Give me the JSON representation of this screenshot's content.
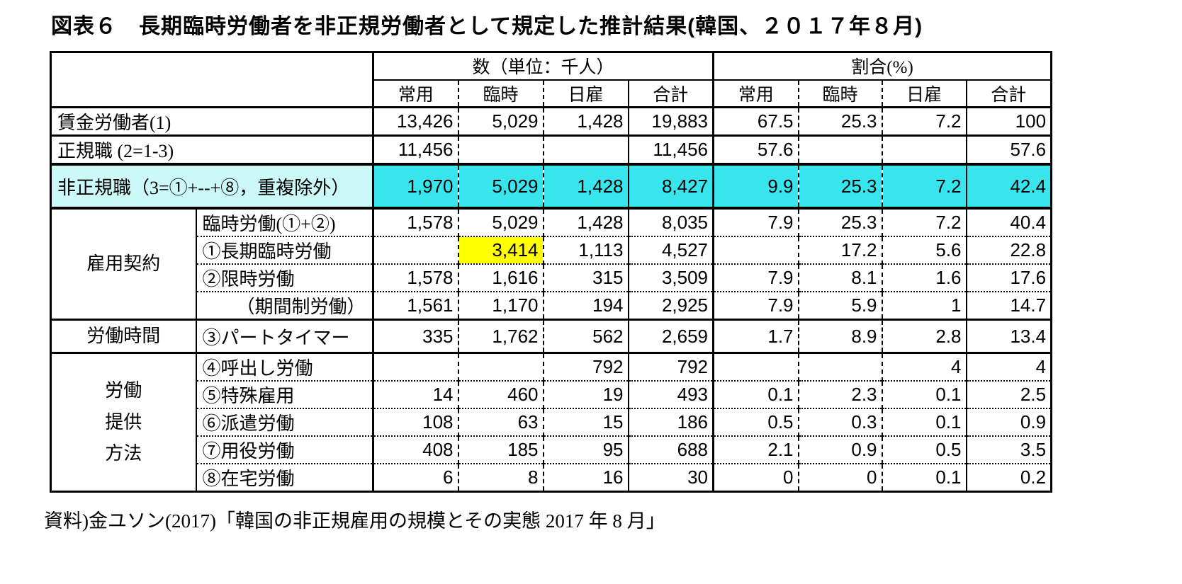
{
  "title": "図表６　長期臨時労働者を非正規労働者として規定した推計結果(韓国、２０１７年８月)",
  "source": "資料)金ユソン(2017)「韓国の非正規雇用の規模とその実態 2017 年 8 月」",
  "colors": {
    "highlight_label_bg": "#ccf8f8",
    "highlight_data_bg": "#38e5ec",
    "yellow_cell_bg": "#ffff00",
    "border": "#000000",
    "background": "#ffffff"
  },
  "table": {
    "col_groups": [
      {
        "label": "数（単位：千人）"
      },
      {
        "label": "割合(%)"
      }
    ],
    "sub_headers": [
      "常用",
      "臨時",
      "日雇",
      "合計",
      "常用",
      "臨時",
      "日雇",
      "合計"
    ],
    "rows": [
      {
        "label": "賃金労働者(1)",
        "label_full": true,
        "divider_top": "none",
        "values": [
          "13,426",
          "5,029",
          "1,428",
          "19,883",
          "67.5",
          "25.3",
          "7.2",
          "100"
        ]
      },
      {
        "label": "正規職 (2=1-3)",
        "label_full": true,
        "divider_top": "solid",
        "values": [
          "11,456",
          "",
          "",
          "11,456",
          "57.6",
          "",
          "",
          "57.6"
        ]
      },
      {
        "label": "非正規職（3=①+--+⑧，重複除外）",
        "label_full": true,
        "divider_top": "thick",
        "highlight": true,
        "tall": true,
        "values": [
          "1,970",
          "5,029",
          "1,428",
          "8,427",
          "9.9",
          "25.3",
          "7.2",
          "42.4"
        ]
      },
      {
        "section": "雇用契約",
        "section_rowspan": 4,
        "label": "臨時労働(①+②)",
        "divider_top": "solid",
        "values": [
          "1,578",
          "5,029",
          "1,428",
          "8,035",
          "7.9",
          "25.3",
          "7.2",
          "40.4"
        ]
      },
      {
        "label": "①長期臨時労働",
        "divider_top": "dotted",
        "yellow": 1,
        "values": [
          "",
          "3,414",
          "1,113",
          "4,527",
          "",
          "17.2",
          "5.6",
          "22.8"
        ]
      },
      {
        "label": "②限時労働",
        "divider_top": "dotted",
        "values": [
          "1,578",
          "1,616",
          "315",
          "3,509",
          "7.9",
          "8.1",
          "1.6",
          "17.6"
        ]
      },
      {
        "label": "（期間制労働）",
        "divider_top": "dotted",
        "indent": true,
        "values": [
          "1,561",
          "1,170",
          "194",
          "2,925",
          "7.9",
          "5.9",
          "1",
          "14.7"
        ]
      },
      {
        "section": "労働時間",
        "section_rowspan": 1,
        "label": "③パートタイマー",
        "divider_top": "solid",
        "values": [
          "335",
          "1,762",
          "562",
          "2,659",
          "1.7",
          "8.9",
          "2.8",
          "13.4"
        ]
      },
      {
        "section": "労働\n提供\n方法",
        "section_rowspan": 5,
        "label": "④呼出し労働",
        "divider_top": "solid",
        "values": [
          "",
          "",
          "792",
          "792",
          "",
          "",
          "4",
          "4"
        ]
      },
      {
        "label": "⑤特殊雇用",
        "divider_top": "dotted",
        "values": [
          "14",
          "460",
          "19",
          "493",
          "0.1",
          "2.3",
          "0.1",
          "2.5"
        ]
      },
      {
        "label": "⑥派遣労働",
        "divider_top": "dotted",
        "values": [
          "108",
          "63",
          "15",
          "186",
          "0.5",
          "0.3",
          "0.1",
          "0.9"
        ]
      },
      {
        "label": "⑦用役労働",
        "divider_top": "dotted",
        "values": [
          "408",
          "185",
          "95",
          "688",
          "2.1",
          "0.9",
          "0.5",
          "3.5"
        ]
      },
      {
        "label": "⑧在宅労働",
        "divider_top": "dotted",
        "values": [
          "6",
          "8",
          "16",
          "30",
          "0",
          "0",
          "0.1",
          "0.2"
        ]
      }
    ]
  }
}
